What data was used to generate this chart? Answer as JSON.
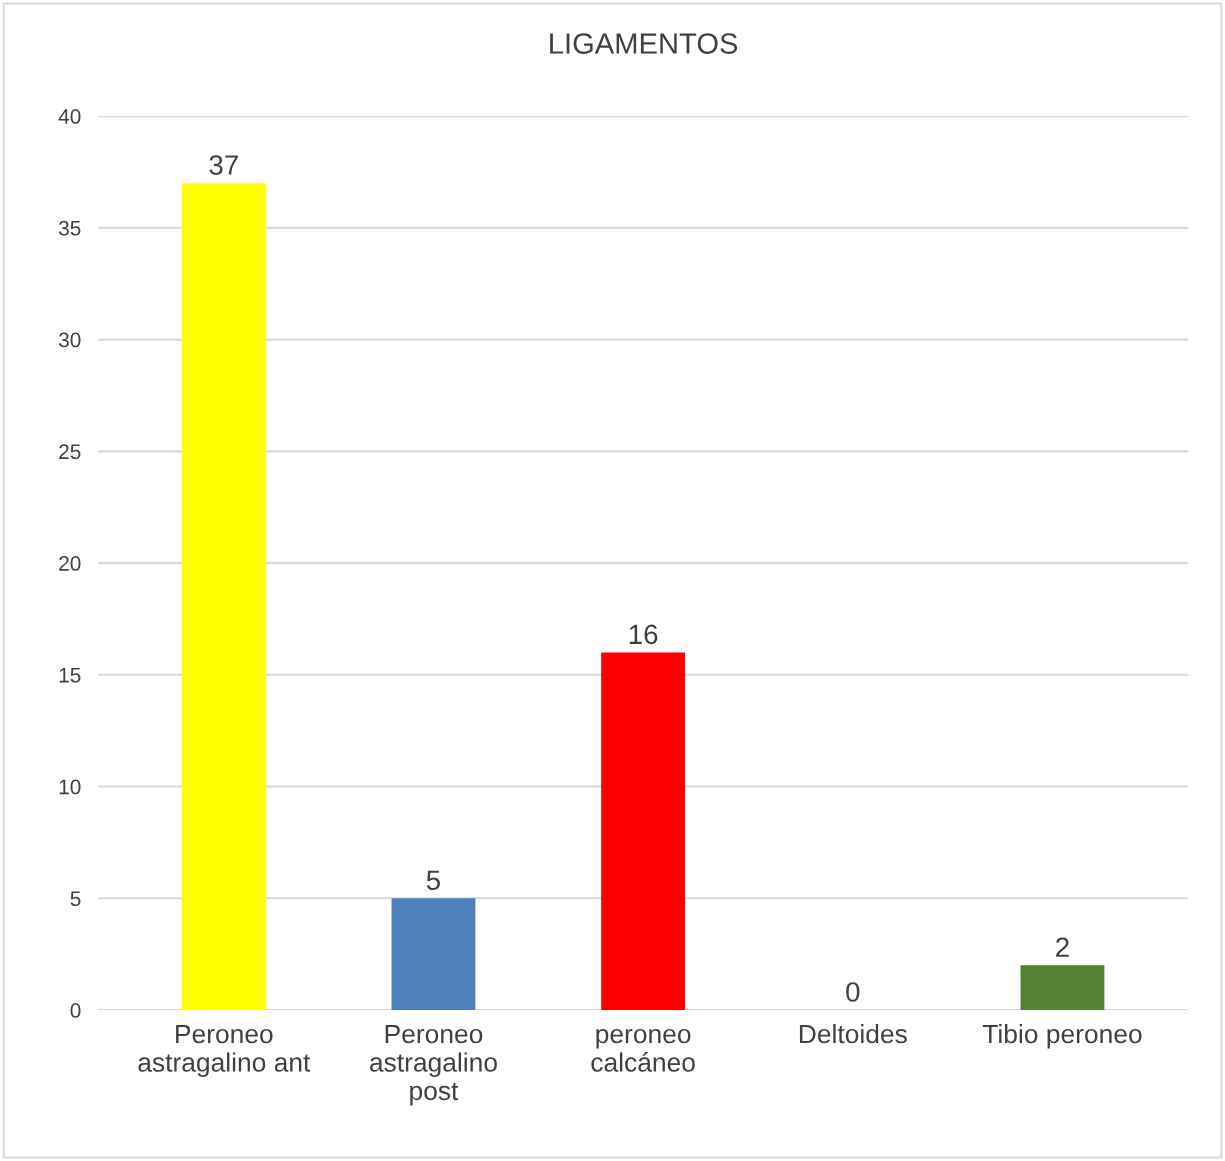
{
  "chart_data": {
    "type": "bar",
    "title": "LIGAMENTOS",
    "categories": [
      "Peroneo\nastragalino ant",
      "Peroneo\nastragalino\npost",
      "peroneo\ncalcáneo",
      "Deltoides",
      "Tibio peroneo"
    ],
    "values": [
      37,
      5,
      16,
      0,
      2
    ],
    "colors": [
      "#ffff00",
      "#4f81bd",
      "#ff0000",
      "#002060",
      "#548235"
    ],
    "ylim": [
      0,
      40
    ],
    "yticks": [
      0,
      5,
      10,
      15,
      20,
      25,
      30,
      35,
      40
    ],
    "grid": "y",
    "data_labels": true,
    "legend": false
  }
}
